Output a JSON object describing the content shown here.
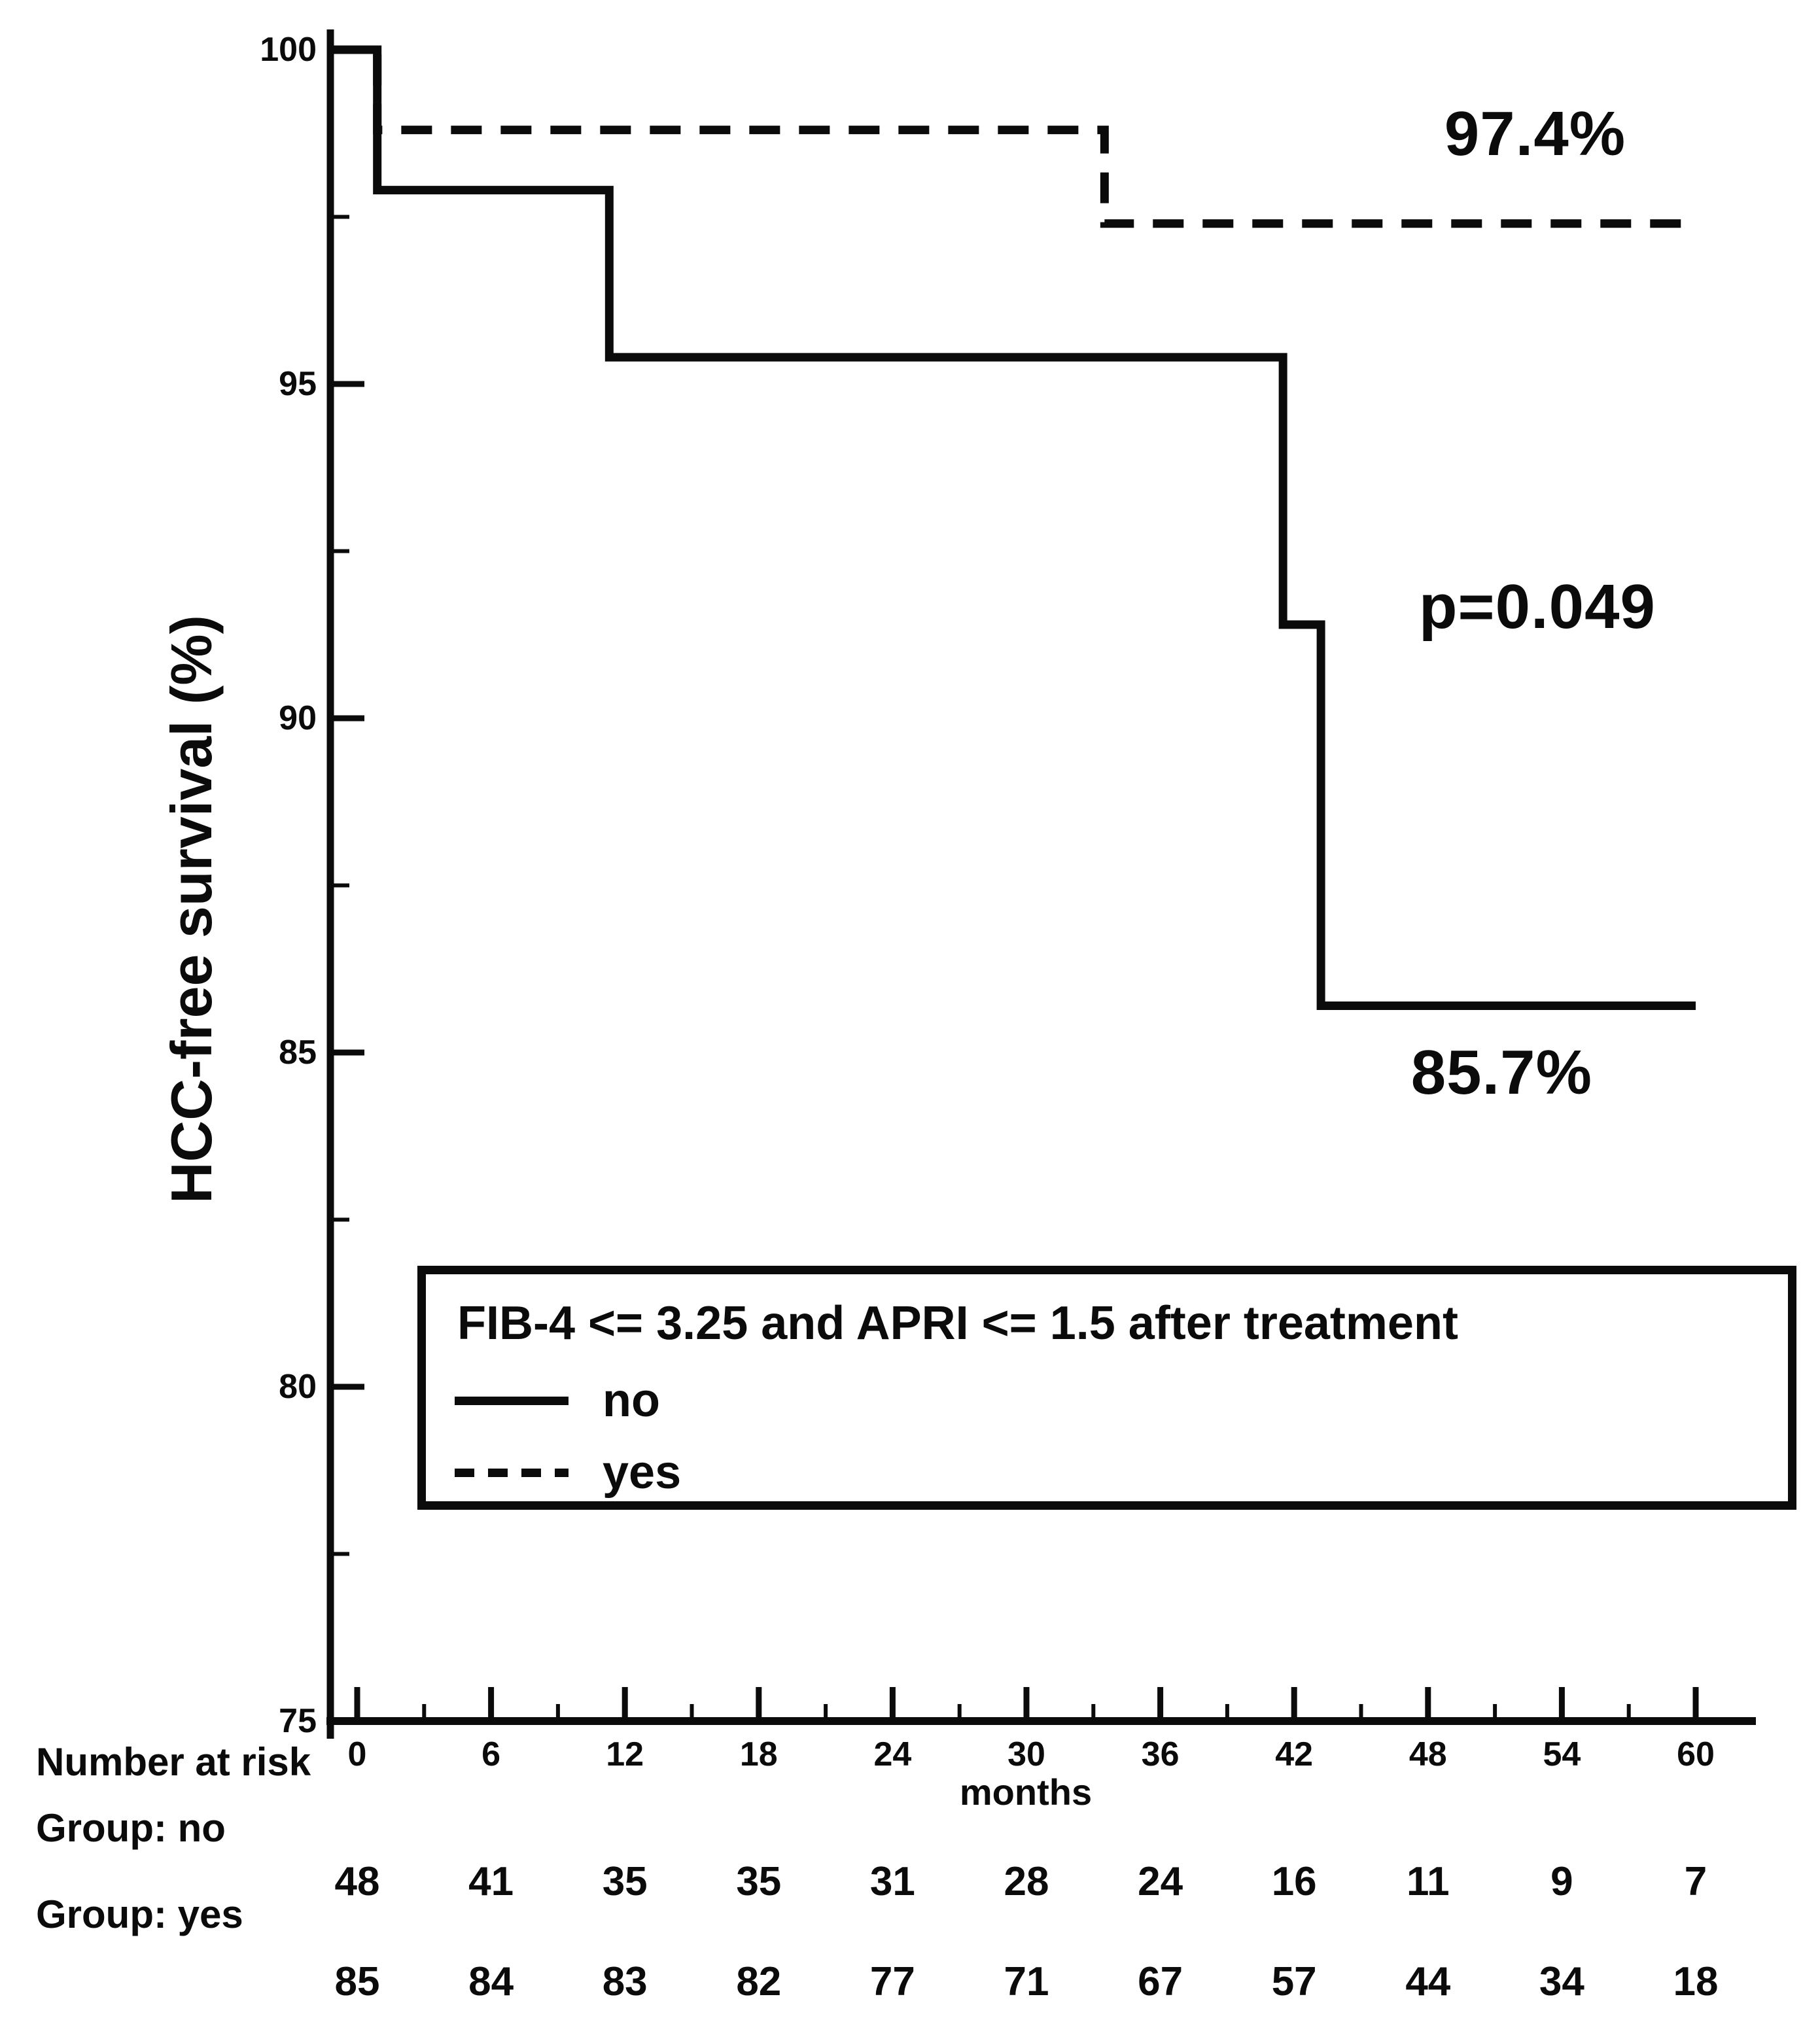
{
  "figure": {
    "background_color": "#ffffff",
    "ink_color": "#0b0b0b"
  },
  "chart_data": {
    "type": "line",
    "subtype": "kaplan-meier-step",
    "title": "",
    "xlabel": "months",
    "ylabel": "HCC-free survival (%)",
    "x_axis": {
      "min": 0,
      "max": 60,
      "major_ticks": [
        0,
        6,
        12,
        18,
        24,
        30,
        36,
        42,
        48,
        54,
        60
      ],
      "minor_ticks": [
        3,
        9,
        15,
        21,
        27,
        33,
        39,
        45,
        51,
        57
      ],
      "tick_labels": [
        "0",
        "6",
        "12",
        "18",
        "24",
        "30",
        "36",
        "42",
        "48",
        "54",
        "60"
      ]
    },
    "y_axis": {
      "min": 75,
      "max": 100,
      "major_ticks": [
        75,
        80,
        85,
        90,
        95,
        100
      ],
      "minor_ticks": [
        77.5,
        82.5,
        87.5,
        92.5,
        97.5
      ],
      "tick_labels": [
        "75",
        "80",
        "85",
        "90",
        "95",
        "100"
      ]
    },
    "grid": false,
    "series": [
      {
        "name": "no",
        "style": "solid",
        "extend_to_axis": true,
        "points": [
          [
            0,
            100
          ],
          [
            0.9,
            100
          ],
          [
            0.9,
            97.9
          ],
          [
            11.3,
            97.9
          ],
          [
            11.3,
            95.4
          ],
          [
            41.5,
            95.4
          ],
          [
            41.5,
            91.4
          ],
          [
            43.2,
            91.4
          ],
          [
            43.2,
            85.7
          ],
          [
            60,
            85.7
          ]
        ],
        "final_survival_percent": 85.7
      },
      {
        "name": "yes",
        "style": "dashed",
        "extend_to_axis": true,
        "points": [
          [
            0,
            100
          ],
          [
            0.9,
            100
          ],
          [
            0.9,
            98.8
          ],
          [
            33.5,
            98.8
          ],
          [
            33.5,
            97.4
          ],
          [
            60,
            97.4
          ]
        ],
        "final_survival_percent": 97.4
      }
    ],
    "annotations": [
      {
        "text": "97.4%",
        "x_month": 52.8,
        "y_percent": 98.74
      },
      {
        "text": "p=0.049",
        "x_month": 52.9,
        "y_percent": 91.66
      },
      {
        "text": "85.7%",
        "x_month": 51.3,
        "y_percent": 84.7
      }
    ],
    "legend": {
      "position": "inside-bottom-left",
      "title": "FIB-4 <= 3.25 and APRI <= 1.5 after treatment",
      "items": [
        {
          "label": "no",
          "style": "solid"
        },
        {
          "label": "yes",
          "style": "dashed"
        }
      ]
    },
    "number_at_risk": {
      "header": "Number at risk",
      "months": [
        0,
        6,
        12,
        18,
        24,
        30,
        36,
        42,
        48,
        54,
        60
      ],
      "groups": [
        {
          "label": "Group: no",
          "values": [
            48,
            41,
            35,
            35,
            31,
            28,
            24,
            16,
            11,
            9,
            7
          ]
        },
        {
          "label": "Group: yes",
          "values": [
            85,
            84,
            83,
            82,
            77,
            71,
            67,
            57,
            44,
            34,
            18
          ]
        }
      ]
    }
  }
}
